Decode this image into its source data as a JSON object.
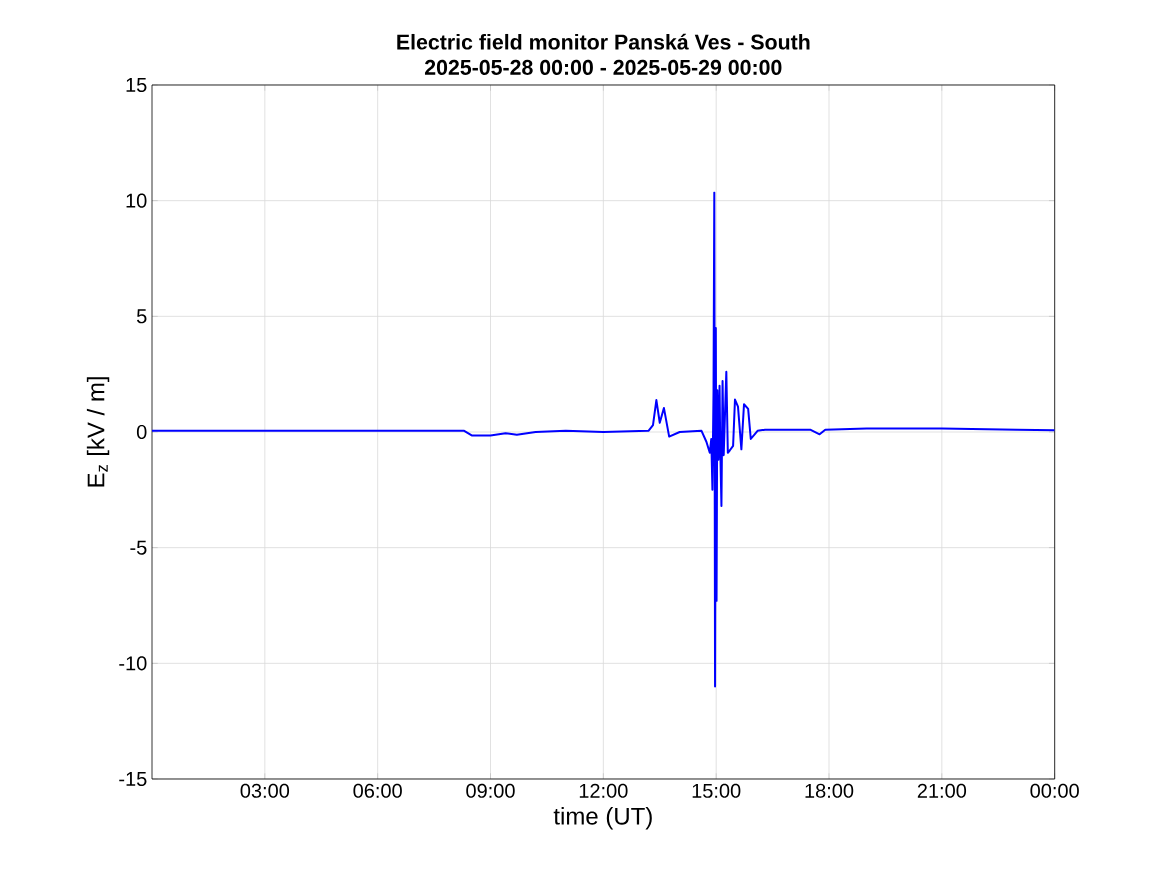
{
  "chart_data": {
    "type": "line",
    "title": "Electric field monitor Panská Ves - South",
    "subtitle": "2025-05-28 00:00 - 2025-05-29 00:00",
    "xlabel": "time (UT)",
    "ylabel": "E$_{z}$ [kV / m]",
    "x": [
      0,
      2,
      4,
      6,
      8,
      8.3,
      8.5,
      9.0,
      9.4,
      9.7,
      10.2,
      11,
      12,
      13.2,
      13.32,
      13.41,
      13.5,
      13.61,
      13.75,
      14.03,
      14.61,
      14.74,
      14.83,
      14.87,
      14.9,
      14.93,
      14.95,
      14.97,
      14.99,
      15.01,
      15.03,
      15.06,
      15.09,
      15.11,
      15.14,
      15.17,
      15.2,
      15.27,
      15.31,
      15.36,
      15.45,
      15.5,
      15.58,
      15.67,
      15.74,
      15.85,
      15.92,
      16.0,
      16.1,
      16.3,
      17.5,
      17.75,
      17.9,
      19,
      21,
      23,
      24
    ],
    "series": [
      {
        "color": "#0000ff",
        "values": [
          0.05,
          0.05,
          0.05,
          0.05,
          0.05,
          0.05,
          -0.15,
          -0.15,
          -0.05,
          -0.12,
          0.0,
          0.05,
          0.0,
          0.05,
          0.3,
          1.38,
          0.4,
          1.04,
          -0.2,
          0.0,
          0.05,
          -0.42,
          -0.9,
          -0.3,
          -2.5,
          1.8,
          10.35,
          -11.0,
          4.5,
          -7.3,
          1.8,
          -1.2,
          2.0,
          -0.8,
          -3.2,
          2.2,
          -1.0,
          2.6,
          -0.9,
          -0.8,
          -0.6,
          1.4,
          1.1,
          -0.75,
          1.2,
          1.0,
          -0.3,
          -0.15,
          0.05,
          0.1,
          0.1,
          -0.1,
          0.1,
          0.15,
          0.15,
          0.1,
          0.08
        ]
      }
    ],
    "xlim": [
      0,
      24
    ],
    "ylim": [
      -15,
      15
    ],
    "xticks": [
      {
        "value": 3,
        "label": "03:00"
      },
      {
        "value": 6,
        "label": "06:00"
      },
      {
        "value": 9,
        "label": "09:00"
      },
      {
        "value": 12,
        "label": "12:00"
      },
      {
        "value": 15,
        "label": "15:00"
      },
      {
        "value": 18,
        "label": "18:00"
      },
      {
        "value": 21,
        "label": "21:00"
      },
      {
        "value": 24,
        "label": "00:00"
      }
    ],
    "yticks": [
      -15,
      -10,
      -5,
      0,
      5,
      10,
      15
    ],
    "grid": true,
    "marker": "none",
    "line_style": "solid"
  }
}
